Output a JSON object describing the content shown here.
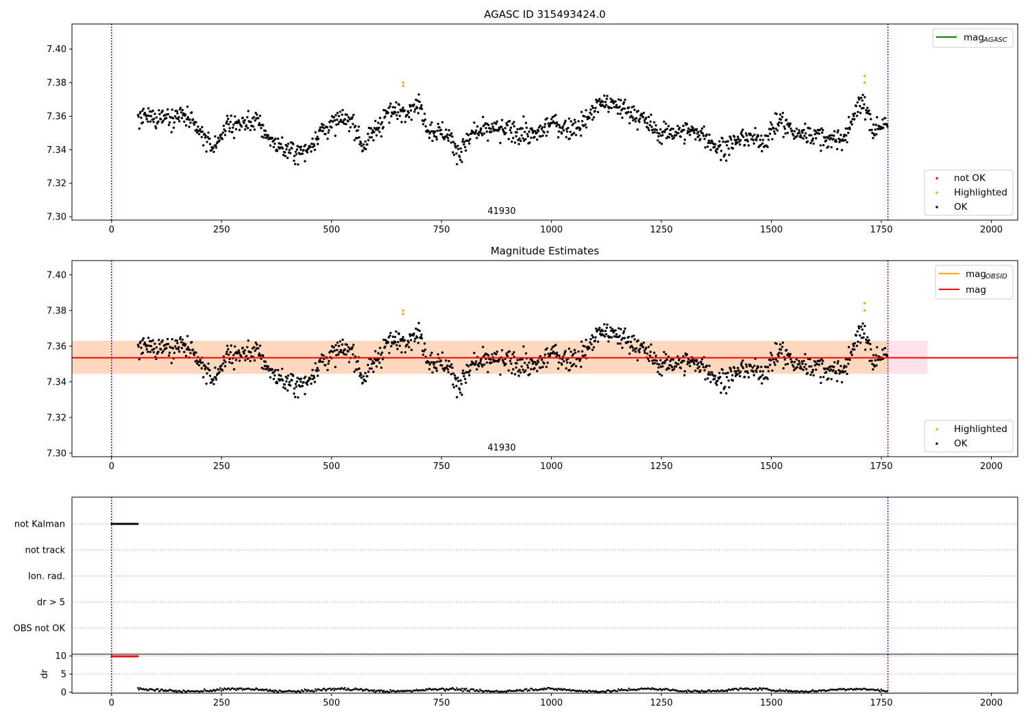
{
  "chart_data": [
    {
      "id": "agasc",
      "type": "scatter",
      "title": "AGASC ID 315493424.0",
      "xlim": [
        -90,
        2060
      ],
      "ylim": [
        7.298,
        7.415
      ],
      "x_ticks": [
        0,
        250,
        500,
        750,
        1000,
        1250,
        1500,
        1750,
        2000
      ],
      "y_ticks": [
        7.3,
        7.32,
        7.34,
        7.36,
        7.38,
        7.4
      ],
      "y_tick_labels": [
        "7.30",
        "7.32",
        "7.34",
        "7.36",
        "7.38",
        "7.40"
      ],
      "vlines": [
        0,
        1765
      ],
      "annotation": {
        "text": "41930",
        "x": 882
      },
      "series_note": "OK points: pseudo-reconstruction of a noisy light curve from t=60 to t=1765",
      "highlighted_points": [
        [
          663,
          7.378
        ],
        [
          663,
          7.38
        ],
        [
          1712,
          7.38
        ],
        [
          1712,
          7.384
        ]
      ],
      "legend_lines": [
        {
          "label": "mag",
          "sub": "AGASC",
          "color": "#008000"
        }
      ],
      "legend_points": [
        {
          "label": "not OK",
          "color": "#ff0000"
        },
        {
          "label": "Highlighted",
          "color": "#ffa500"
        },
        {
          "label": "OK",
          "color": "#000000"
        }
      ]
    },
    {
      "id": "estimates",
      "type": "scatter",
      "title": "Magnitude Estimates",
      "xlim": [
        -90,
        2060
      ],
      "ylim": [
        7.298,
        7.408
      ],
      "x_ticks": [
        0,
        250,
        500,
        750,
        1000,
        1250,
        1500,
        1750,
        2000
      ],
      "y_ticks": [
        7.3,
        7.32,
        7.34,
        7.36,
        7.38,
        7.4
      ],
      "y_tick_labels": [
        "7.30",
        "7.32",
        "7.34",
        "7.36",
        "7.38",
        "7.40"
      ],
      "vlines": [
        0,
        1765
      ],
      "annotation": {
        "text": "41930",
        "x": 882
      },
      "mag_line": 7.3535,
      "mag_band": {
        "x": [
          -90,
          1855
        ],
        "y": [
          7.3445,
          7.363
        ],
        "color": "#ffc0cb"
      },
      "obsid_band": {
        "x": [
          -90,
          1765
        ],
        "y": [
          7.3445,
          7.363
        ],
        "color": "#ffa500"
      },
      "highlighted_points": [
        [
          663,
          7.378
        ],
        [
          663,
          7.38
        ],
        [
          1712,
          7.38
        ],
        [
          1712,
          7.384
        ]
      ],
      "legend_lines": [
        {
          "label": "mag",
          "sub": "OBSID",
          "color": "#ffa500"
        },
        {
          "label": "mag",
          "sub": "",
          "color": "#ff0000"
        }
      ],
      "legend_points": [
        {
          "label": "Highlighted",
          "color": "#ffa500"
        },
        {
          "label": "OK",
          "color": "#000000"
        }
      ]
    },
    {
      "id": "flags",
      "type": "scatter",
      "xlim": [
        -90,
        2060
      ],
      "categories": [
        "not Kalman",
        "not track",
        "Ion. rad.",
        "dr > 5",
        "OBS not OK"
      ],
      "not_kalman_range": [
        0,
        60
      ],
      "vlines": [
        0,
        1765
      ]
    },
    {
      "id": "dr",
      "type": "scatter",
      "ylabel": "dr",
      "xlim": [
        -90,
        2060
      ],
      "ylim": [
        -0.3,
        10.5
      ],
      "x_ticks": [
        0,
        250,
        500,
        750,
        1000,
        1250,
        1500,
        1750,
        2000
      ],
      "y_ticks": [
        0,
        5,
        10
      ],
      "y_tick_labels": [
        "0",
        "5",
        "10"
      ],
      "high_dr": {
        "x": [
          0,
          60
        ],
        "value": 9.9
      },
      "low_dr_range": [
        60,
        1765
      ],
      "vlines": [
        0,
        1765
      ]
    }
  ]
}
